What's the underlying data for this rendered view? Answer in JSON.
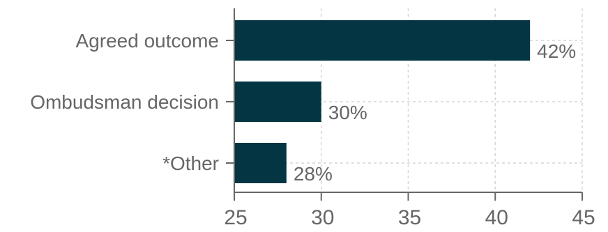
{
  "chart_data": {
    "type": "bar",
    "orientation": "horizontal",
    "title": "",
    "xlabel": "",
    "ylabel": "",
    "categories": [
      "Agreed outcome",
      "Ombudsman decision",
      "*Other"
    ],
    "values": [
      42,
      30,
      28
    ],
    "value_labels": [
      "42%",
      "30%",
      "28%"
    ],
    "xlim": [
      25,
      45
    ],
    "xticks": [
      25,
      30,
      35,
      40,
      45
    ],
    "grid": "x-axis dashed",
    "legend": "none"
  },
  "colors": {
    "bar": "#033642",
    "text": "#666666",
    "axis": "#666666",
    "grid": "#d6d6d6"
  }
}
